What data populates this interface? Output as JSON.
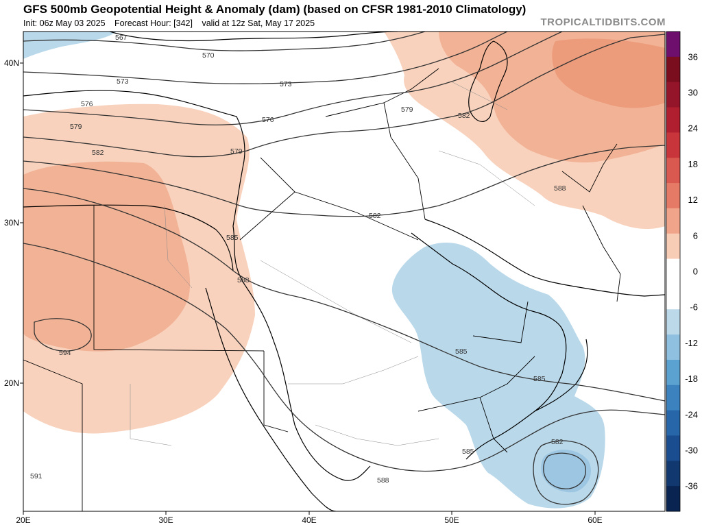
{
  "header": {
    "title": "GFS 500mb Geopotential Height & Anomaly (dam) (based on CFSR 1981-2010 Climatology)",
    "init": "Init: 06z May 03 2025",
    "forecast_hour": "Forecast Hour: [342]",
    "valid": "valid at 12z Sat, May 17 2025",
    "brand": "TROPICALTIDBITS.COM"
  },
  "axes": {
    "lon_ticks": [
      "20E",
      "30E",
      "40E",
      "50E",
      "60E"
    ],
    "lat_ticks": [
      "40N",
      "30N",
      "20N"
    ]
  },
  "contour_labels": [
    "567",
    "570",
    "573",
    "573",
    "576",
    "576",
    "579",
    "579",
    "579",
    "582",
    "582",
    "582",
    "582",
    "585",
    "585",
    "585",
    "585",
    "588",
    "588",
    "588",
    "591",
    "594"
  ],
  "colorbar": {
    "labels": [
      "36",
      "30",
      "24",
      "18",
      "12",
      "6",
      "0",
      "-6",
      "-12",
      "-18",
      "-24",
      "-30",
      "-36"
    ],
    "colors": [
      "#6e0f6e",
      "#7a0d1e",
      "#94152a",
      "#b01f30",
      "#c8353a",
      "#d9584f",
      "#e57a66",
      "#f0a58a",
      "#f8cdb6",
      "#ffffff",
      "#ffffff",
      "#bcd9ea",
      "#8fc0df",
      "#5ca2d0",
      "#3b82bf",
      "#2766a8",
      "#1a4d8f",
      "#123870",
      "#0a2452"
    ]
  },
  "anomaly_colors": {
    "pos_light": "#f8d2bd",
    "pos_mid": "#f2b295",
    "pos_strong": "#ec9b7b",
    "neg_light": "#b9d8ea",
    "neg_mid": "#9cc6e2"
  }
}
